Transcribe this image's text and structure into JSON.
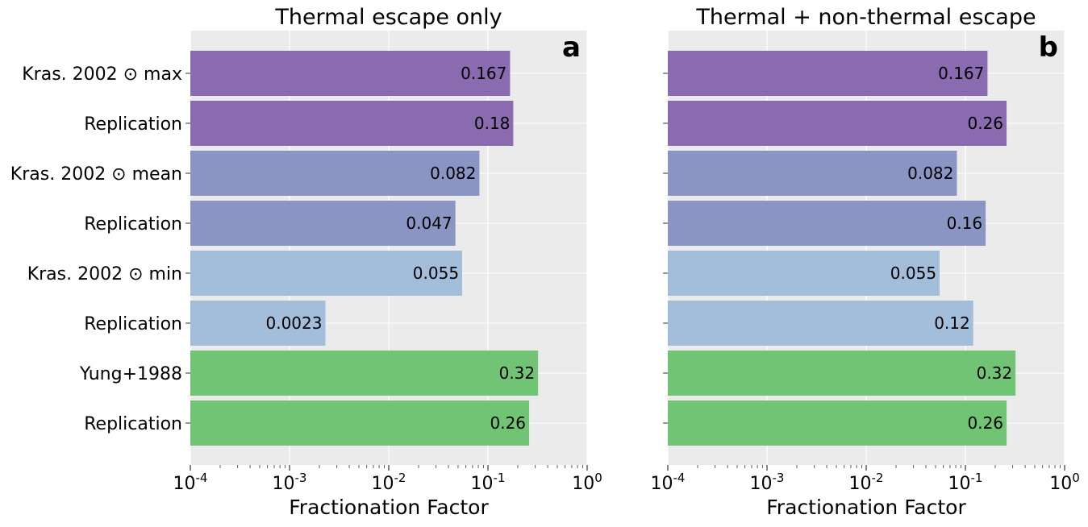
{
  "chart_data": [
    {
      "type": "bar",
      "orientation": "horizontal",
      "title": "Thermal escape only",
      "panel_label": "a",
      "xlabel": "Fractionation Factor",
      "xscale": "log",
      "xlim": [
        0.0001,
        1
      ],
      "xtick_labels": [
        {
          "base": "10",
          "exp": "-4"
        },
        {
          "base": "10",
          "exp": "-3"
        },
        {
          "base": "10",
          "exp": "-2"
        },
        {
          "base": "10",
          "exp": "-1"
        },
        {
          "base": "10",
          "exp": "0"
        }
      ],
      "grid": true,
      "categories": [
        "Kras. 2002 ⊙ max",
        "Replication",
        "Kras. 2002 ⊙ mean",
        "Replication",
        "Kras. 2002 ⊙ min",
        "Replication",
        "Yung+1988",
        "Replication"
      ],
      "values": [
        0.167,
        0.18,
        0.082,
        0.047,
        0.055,
        0.0023,
        0.32,
        0.26
      ],
      "value_labels": [
        "0.167",
        "0.18",
        "0.082",
        "0.047",
        "0.055",
        "0.0023",
        "0.32",
        "0.26"
      ],
      "colors": [
        "#8a6bb0",
        "#8a6bb0",
        "#8a95c4",
        "#8a95c4",
        "#a3bedb",
        "#a3bedb",
        "#72c475",
        "#72c475"
      ]
    },
    {
      "type": "bar",
      "orientation": "horizontal",
      "title": "Thermal + non-thermal escape",
      "panel_label": "b",
      "xlabel": "Fractionation Factor",
      "xscale": "log",
      "xlim": [
        0.0001,
        1
      ],
      "xtick_labels": [
        {
          "base": "10",
          "exp": "-4"
        },
        {
          "base": "10",
          "exp": "-3"
        },
        {
          "base": "10",
          "exp": "-2"
        },
        {
          "base": "10",
          "exp": "-1"
        },
        {
          "base": "10",
          "exp": "0"
        }
      ],
      "grid": true,
      "categories": [
        "Kras. 2002 ⊙ max",
        "Replication",
        "Kras. 2002 ⊙ mean",
        "Replication",
        "Kras. 2002 ⊙ min",
        "Replication",
        "Yung+1988",
        "Replication"
      ],
      "values": [
        0.167,
        0.26,
        0.082,
        0.16,
        0.055,
        0.12,
        0.32,
        0.26
      ],
      "value_labels": [
        "0.167",
        "0.26",
        "0.082",
        "0.16",
        "0.055",
        "0.12",
        "0.32",
        "0.26"
      ],
      "colors": [
        "#8a6bb0",
        "#8a6bb0",
        "#8a95c4",
        "#8a95c4",
        "#a3bedb",
        "#a3bedb",
        "#72c475",
        "#72c475"
      ]
    }
  ],
  "style": {
    "panel_background": "#ebebeb",
    "grid_color": "#ffffff"
  }
}
